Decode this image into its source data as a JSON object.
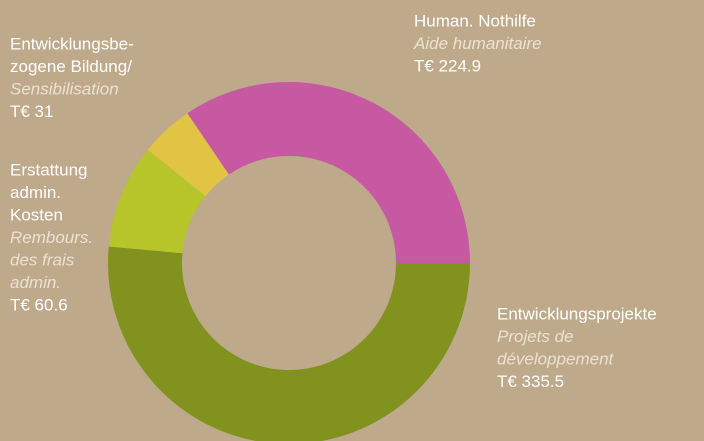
{
  "chart_data": {
    "type": "donut",
    "categories": [
      [
        "Entwicklungsprojekte"
      ],
      [
        "Erstattung",
        "admin.",
        "Kosten"
      ],
      [
        "Entwicklungsbe-",
        "zogene Bildung/"
      ],
      [
        "Human. Nothilfe"
      ]
    ],
    "subtitles": [
      [
        "Projets de",
        "développement"
      ],
      [
        "Rembours.",
        "des frais",
        "admin."
      ],
      [
        "Sensibilisation"
      ],
      [
        "Aide humanitaire"
      ]
    ],
    "values": [
      335.5,
      60.6,
      31,
      224.9
    ],
    "value_labels": [
      "T€ 335.5",
      "T€ 60.6",
      "T€ 31",
      "T€ 224.9"
    ],
    "colors": [
      "#82921f",
      "#b7c42a",
      "#e2c445",
      "#c659a2"
    ]
  }
}
